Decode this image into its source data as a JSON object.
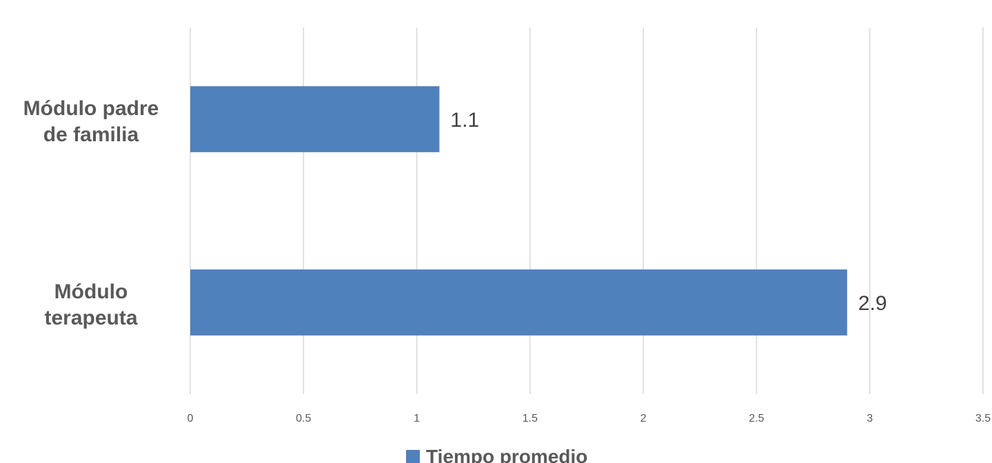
{
  "chart_data": {
    "type": "bar",
    "orientation": "horizontal",
    "categories": [
      "Módulo padre de familia",
      "Módulo terapeuta"
    ],
    "category_lines": [
      [
        "Módulo padre",
        "de familia"
      ],
      [
        "Módulo",
        "terapeuta"
      ]
    ],
    "series": [
      {
        "name": "Tiempo promedio",
        "values": [
          1.1,
          2.9
        ]
      }
    ],
    "data_labels": [
      "1.1",
      "2.9"
    ],
    "xlim": [
      0,
      3.5
    ],
    "xticks": [
      "0",
      "0.5",
      "1",
      "1.5",
      "2",
      "2.5",
      "3",
      "3.5"
    ],
    "grid": true,
    "legend_position": "bottom",
    "colors": {
      "bar": "#4f81bd",
      "grid": "#d9d9d9",
      "text": "#595959"
    }
  }
}
